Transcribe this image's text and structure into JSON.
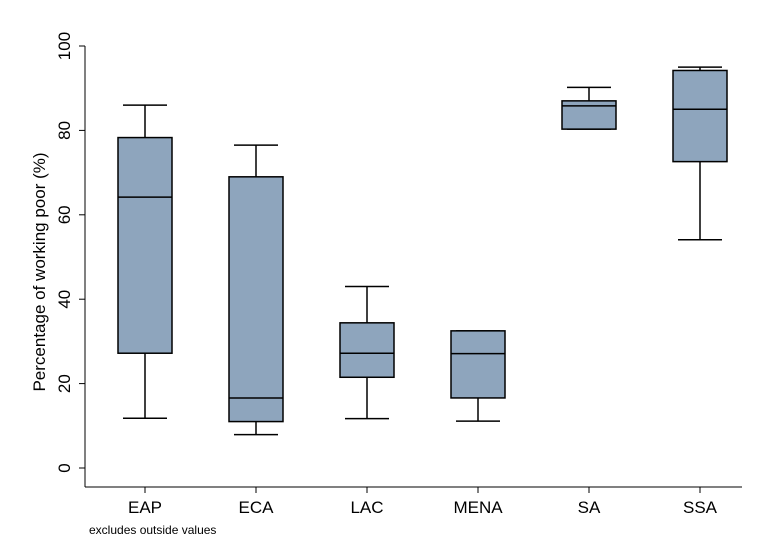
{
  "chart_data": {
    "type": "box",
    "title": "",
    "xlabel": "",
    "ylabel": "Percentage of working poor (%)",
    "ylim": [
      0,
      100
    ],
    "yticks": [
      0,
      20,
      40,
      60,
      80,
      100
    ],
    "grid": false,
    "note": "excludes outside values",
    "colors": {
      "box_fill": "#8ea5bd",
      "stroke": "#000000"
    },
    "categories": [
      "EAP",
      "ECA",
      "LAC",
      "MENA",
      "SA",
      "SSA"
    ],
    "boxes": [
      {
        "category": "EAP",
        "whisker_low": 11.8,
        "q1": 27.2,
        "median": 64.2,
        "q3": 78.3,
        "whisker_high": 86.0
      },
      {
        "category": "ECA",
        "whisker_low": 7.9,
        "q1": 11.0,
        "median": 16.6,
        "q3": 69.0,
        "whisker_high": 76.5
      },
      {
        "category": "LAC",
        "whisker_low": 11.7,
        "q1": 21.5,
        "median": 27.2,
        "q3": 34.4,
        "whisker_high": 43.0
      },
      {
        "category": "MENA",
        "whisker_low": 11.1,
        "q1": 16.6,
        "median": 27.1,
        "q3": 32.5,
        "whisker_high": 32.5
      },
      {
        "category": "SA",
        "whisker_low": 80.3,
        "q1": 80.3,
        "median": 85.8,
        "q3": 87.0,
        "whisker_high": 90.2
      },
      {
        "category": "SSA",
        "whisker_low": 54.1,
        "q1": 72.6,
        "median": 85.0,
        "q3": 94.2,
        "whisker_high": 95.0
      }
    ]
  }
}
